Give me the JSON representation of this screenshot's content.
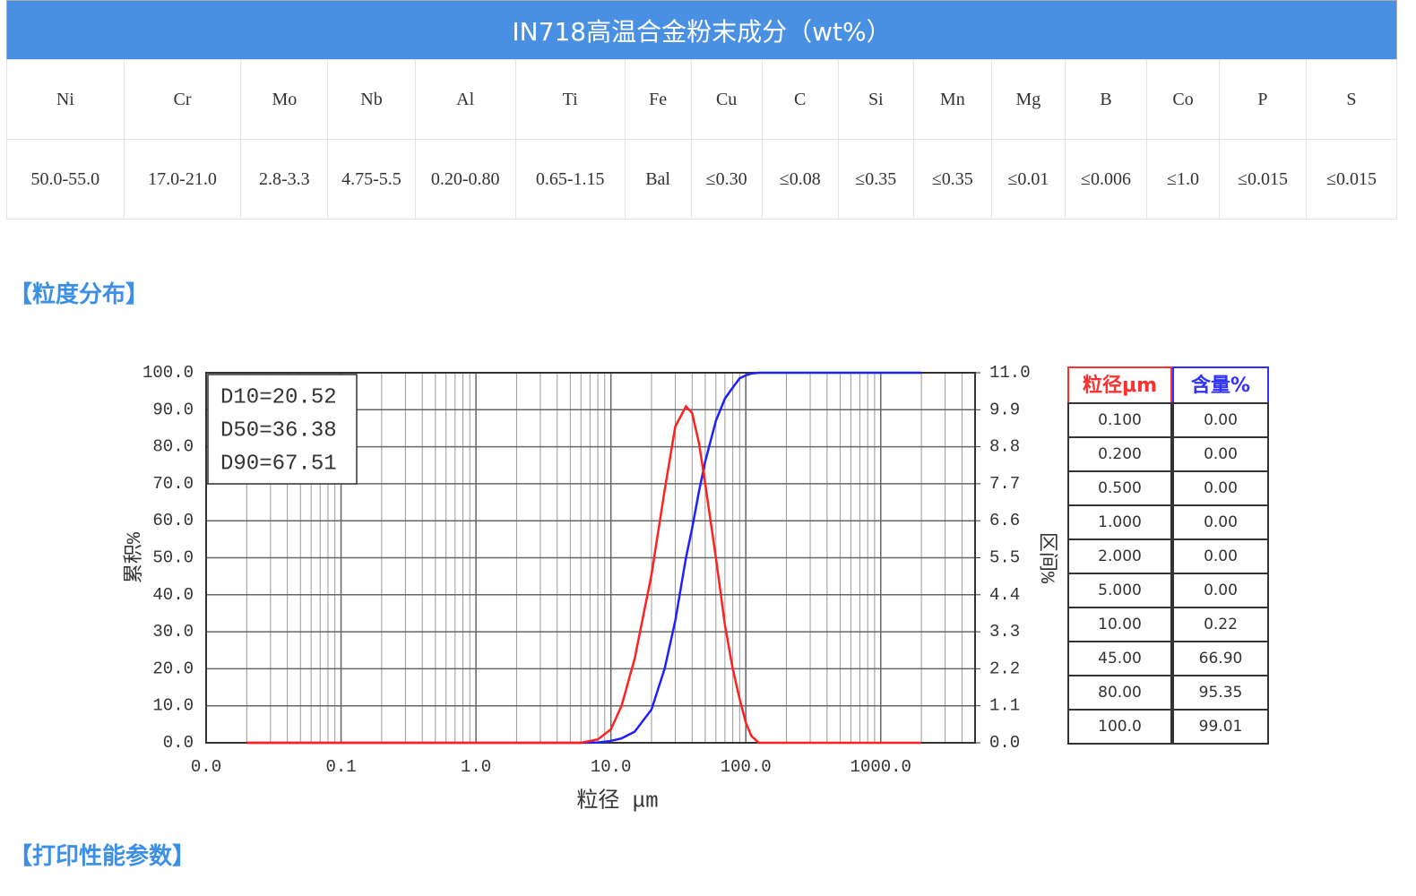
{
  "table": {
    "title": "IN718高温合金粉末成分（wt%）",
    "header": [
      "Ni",
      "Cr",
      "Mo",
      "Nb",
      "Al",
      "Ti",
      "Fe",
      "Cu",
      "C",
      "Si",
      "Mn",
      "Mg",
      "B",
      "Co",
      "P",
      "S"
    ],
    "rows": [
      [
        "50.0-55.0",
        "17.0-21.0",
        "2.8-3.3",
        "4.75-5.5",
        "0.20-0.80",
        "0.65-1.15",
        "Bal",
        "≤0.30",
        "≤0.08",
        "≤0.35",
        "≤0.35",
        "≤0.01",
        "≤0.006",
        "≤1.0",
        "≤0.015",
        "≤0.015"
      ]
    ]
  },
  "sections": [
    "【粒度分布】",
    "【打印性能参数】"
  ],
  "chart_data": {
    "type": "line",
    "log_x": true,
    "grid": true,
    "x_label": "粒径 μm",
    "y_label": "累积%",
    "y2_label": "区间%",
    "annotations": [
      "D10=20.52",
      "D50=36.38",
      "D90=67.51"
    ],
    "xlim": [
      0.01,
      5000
    ],
    "xticks": [
      {
        "value": 0.01,
        "label": "0.0"
      },
      {
        "value": 0.1,
        "label": "0.1"
      },
      {
        "value": 1,
        "label": "1.0"
      },
      {
        "value": 10,
        "label": "10.0"
      },
      {
        "value": 100,
        "label": "100.0"
      },
      {
        "value": 1000,
        "label": "1000.0"
      }
    ],
    "ylim": [
      0,
      100
    ],
    "yticks": [
      {
        "value": 0,
        "label": "0.0"
      },
      {
        "value": 10,
        "label": "10.0"
      },
      {
        "value": 20,
        "label": "20.0"
      },
      {
        "value": 30,
        "label": "30.0"
      },
      {
        "value": 40,
        "label": "40.0"
      },
      {
        "value": 50,
        "label": "50.0"
      },
      {
        "value": 60,
        "label": "60.0"
      },
      {
        "value": 70,
        "label": "70.0"
      },
      {
        "value": 80,
        "label": "80.0"
      },
      {
        "value": 90,
        "label": "90.0"
      },
      {
        "value": 100,
        "label": "100.0"
      }
    ],
    "y2lim": [
      0,
      11
    ],
    "y2ticks": [
      {
        "value": 0,
        "label": "0.0"
      },
      1.1,
      2.2,
      3.3,
      4.4,
      5.5,
      6.6,
      7.7,
      8.8,
      9.9,
      {
        "value": 11,
        "label": "11.0"
      }
    ],
    "x": [
      0.02,
      6,
      8,
      10,
      12,
      15,
      20,
      25,
      30,
      36,
      40,
      45,
      50,
      60,
      70,
      80,
      90,
      100,
      110,
      125,
      2000
    ],
    "series": [
      {
        "color": "#2020ff",
        "values": [
          0,
          0,
          0.1,
          0.5,
          1.2,
          3,
          9,
          20,
          33,
          50,
          58,
          68,
          76,
          87,
          93,
          96,
          98.5,
          99.3,
          99.8,
          100,
          100
        ]
      },
      {
        "color": "#ff2020",
        "axis": "y2",
        "values": [
          0,
          0,
          0.1,
          0.4,
          1.1,
          2.5,
          5.0,
          7.5,
          9.4,
          10.0,
          9.8,
          8.9,
          7.7,
          5.5,
          3.5,
          2.2,
          1.3,
          0.6,
          0.2,
          0,
          0
        ]
      }
    ]
  },
  "size_table": {
    "header": [
      "粒径μm",
      "含量%"
    ],
    "rows": [
      [
        "0.100",
        "0.00"
      ],
      [
        "0.200",
        "0.00"
      ],
      [
        "0.500",
        "0.00"
      ],
      [
        "1.000",
        "0.00"
      ],
      [
        "2.000",
        "0.00"
      ],
      [
        "5.000",
        "0.00"
      ],
      [
        "10.00",
        "0.22"
      ],
      [
        "45.00",
        "66.90"
      ],
      [
        "80.00",
        "95.35"
      ],
      [
        "100.0",
        "99.01"
      ]
    ]
  }
}
